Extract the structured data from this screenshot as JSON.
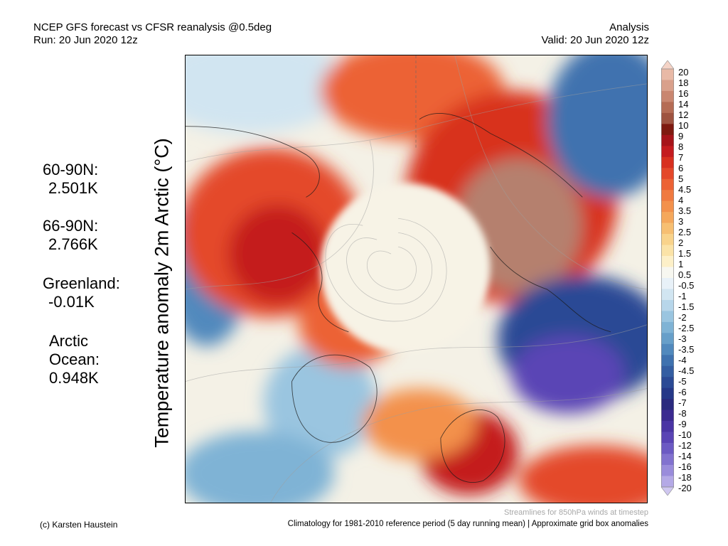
{
  "header": {
    "title": "NCEP GFS forecast vs CFSR reanalysis @0.5deg",
    "run": "Run: 20 Jun 2020 12z",
    "analysis": "Analysis",
    "valid": "Valid: 20 Jun 2020 12z"
  },
  "stats": [
    {
      "label": "60-90N:",
      "value": "2.501K"
    },
    {
      "label": "66-90N:",
      "value": "2.766K"
    },
    {
      "label": "Greenland:",
      "value": "-0.01K"
    },
    {
      "label": "Arctic",
      "label2": "Ocean:",
      "value": "0.948K"
    }
  ],
  "y_label": "Temperature anomaly 2m Arctic (°C)",
  "colorbar": {
    "labels": [
      "20",
      "18",
      "16",
      "14",
      "12",
      "10",
      "9",
      "8",
      "7",
      "6",
      "5",
      "4.5",
      "4",
      "3.5",
      "3",
      "2.5",
      "2",
      "1.5",
      "1",
      "0.5",
      "-0.5",
      "-1",
      "-1.5",
      "-2",
      "-2.5",
      "-3",
      "-3.5",
      "-4",
      "-4.5",
      "-5",
      "-6",
      "-7",
      "-8",
      "-9",
      "-10",
      "-12",
      "-14",
      "-16",
      "-18",
      "-20"
    ],
    "colors": [
      "#f4d3c6",
      "#e8b9a6",
      "#d9a08b",
      "#c98670",
      "#b56c55",
      "#9e5340",
      "#7e1a10",
      "#a6141a",
      "#c41b1f",
      "#d8301f",
      "#e4482a",
      "#ec6235",
      "#f07a40",
      "#f3914c",
      "#f5a85c",
      "#f7bf72",
      "#f9d38b",
      "#fbe3a7",
      "#fdf0c8",
      "#f7f7f0",
      "#e8f1f8",
      "#d1e5f1",
      "#b7d6ea",
      "#9ac5e0",
      "#7fb3d5",
      "#679fc9",
      "#5189bd",
      "#3f72af",
      "#345ea2",
      "#2b4a95",
      "#253888",
      "#2a2a7e",
      "#3b2a90",
      "#4a34a4",
      "#5a44b5",
      "#6c5ac3",
      "#8272cf",
      "#9a8cdb",
      "#b4a9e6",
      "#cfc7f0"
    ]
  },
  "map": {
    "anomaly_colors": {
      "warm_extreme": "#a87a6a",
      "warm_strong": "#c41b1f",
      "warm": "#e4482a",
      "warm_mild": "#f3914c",
      "neutral_warm": "#fbe3a7",
      "neutral": "#f4f1e6",
      "cool": "#b7d6ea",
      "cold": "#5189bd",
      "very_cold": "#2b4a95",
      "extreme_cold": "#5a44b5"
    }
  },
  "footer": {
    "streamlines": "Streamlines for 850hPa winds at timestep",
    "copyright": "(c) Karsten Haustein",
    "climatology": "Climatology for 1981-2010 reference period (5 day running mean) | Approximate grid box anomalies"
  }
}
